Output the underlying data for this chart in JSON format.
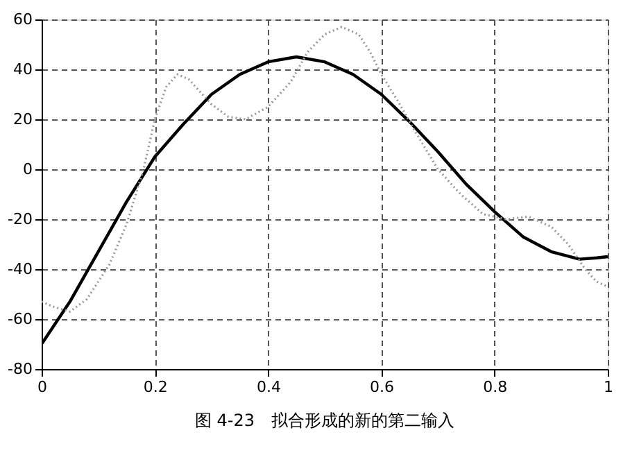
{
  "chart_data": {
    "type": "line",
    "xlim": [
      0,
      1
    ],
    "ylim": [
      -80,
      60
    ],
    "xticks": [
      0,
      0.2,
      0.4,
      0.6,
      0.8,
      1
    ],
    "yticks": [
      -80,
      -60,
      -40,
      -20,
      0,
      20,
      40,
      60
    ],
    "grid": true,
    "legend": false,
    "marker": "none",
    "annotations": [
      "图 4-23　拟合形成的新的第二输入"
    ],
    "series": [
      {
        "color": "#000000",
        "line_style": "solid",
        "x": [
          0,
          0.05,
          0.1,
          0.15,
          0.2,
          0.25,
          0.3,
          0.35,
          0.4,
          0.45,
          0.5,
          0.55,
          0.6,
          0.65,
          0.7,
          0.75,
          0.8,
          0.85,
          0.9,
          0.95,
          0.98,
          1.0
        ],
        "values": [
          -70,
          -53,
          -33,
          -13,
          5,
          18,
          30,
          38,
          43,
          45,
          43,
          38,
          30,
          19,
          7,
          -6,
          -17,
          -27,
          -33,
          -36,
          -35.5,
          -35
        ]
      },
      {
        "color": "#999999",
        "line_style": "dotted",
        "x": [
          0,
          0.02,
          0.05,
          0.08,
          0.1,
          0.12,
          0.15,
          0.18,
          0.2,
          0.22,
          0.24,
          0.26,
          0.3,
          0.33,
          0.36,
          0.4,
          0.44,
          0.47,
          0.5,
          0.53,
          0.56,
          0.58,
          0.6,
          0.63,
          0.66,
          0.7,
          0.74,
          0.78,
          0.82,
          0.86,
          0.9,
          0.93,
          0.96,
          0.98,
          1.0
        ],
        "values": [
          -53,
          -55,
          -57,
          -52,
          -45,
          -38,
          -22,
          0,
          20,
          33,
          38,
          36,
          26,
          21,
          20,
          25,
          35,
          47,
          54,
          57,
          54,
          47,
          38,
          27,
          15,
          0,
          -10,
          -18,
          -20,
          -19,
          -23,
          -30,
          -40,
          -45,
          -47
        ]
      }
    ]
  }
}
